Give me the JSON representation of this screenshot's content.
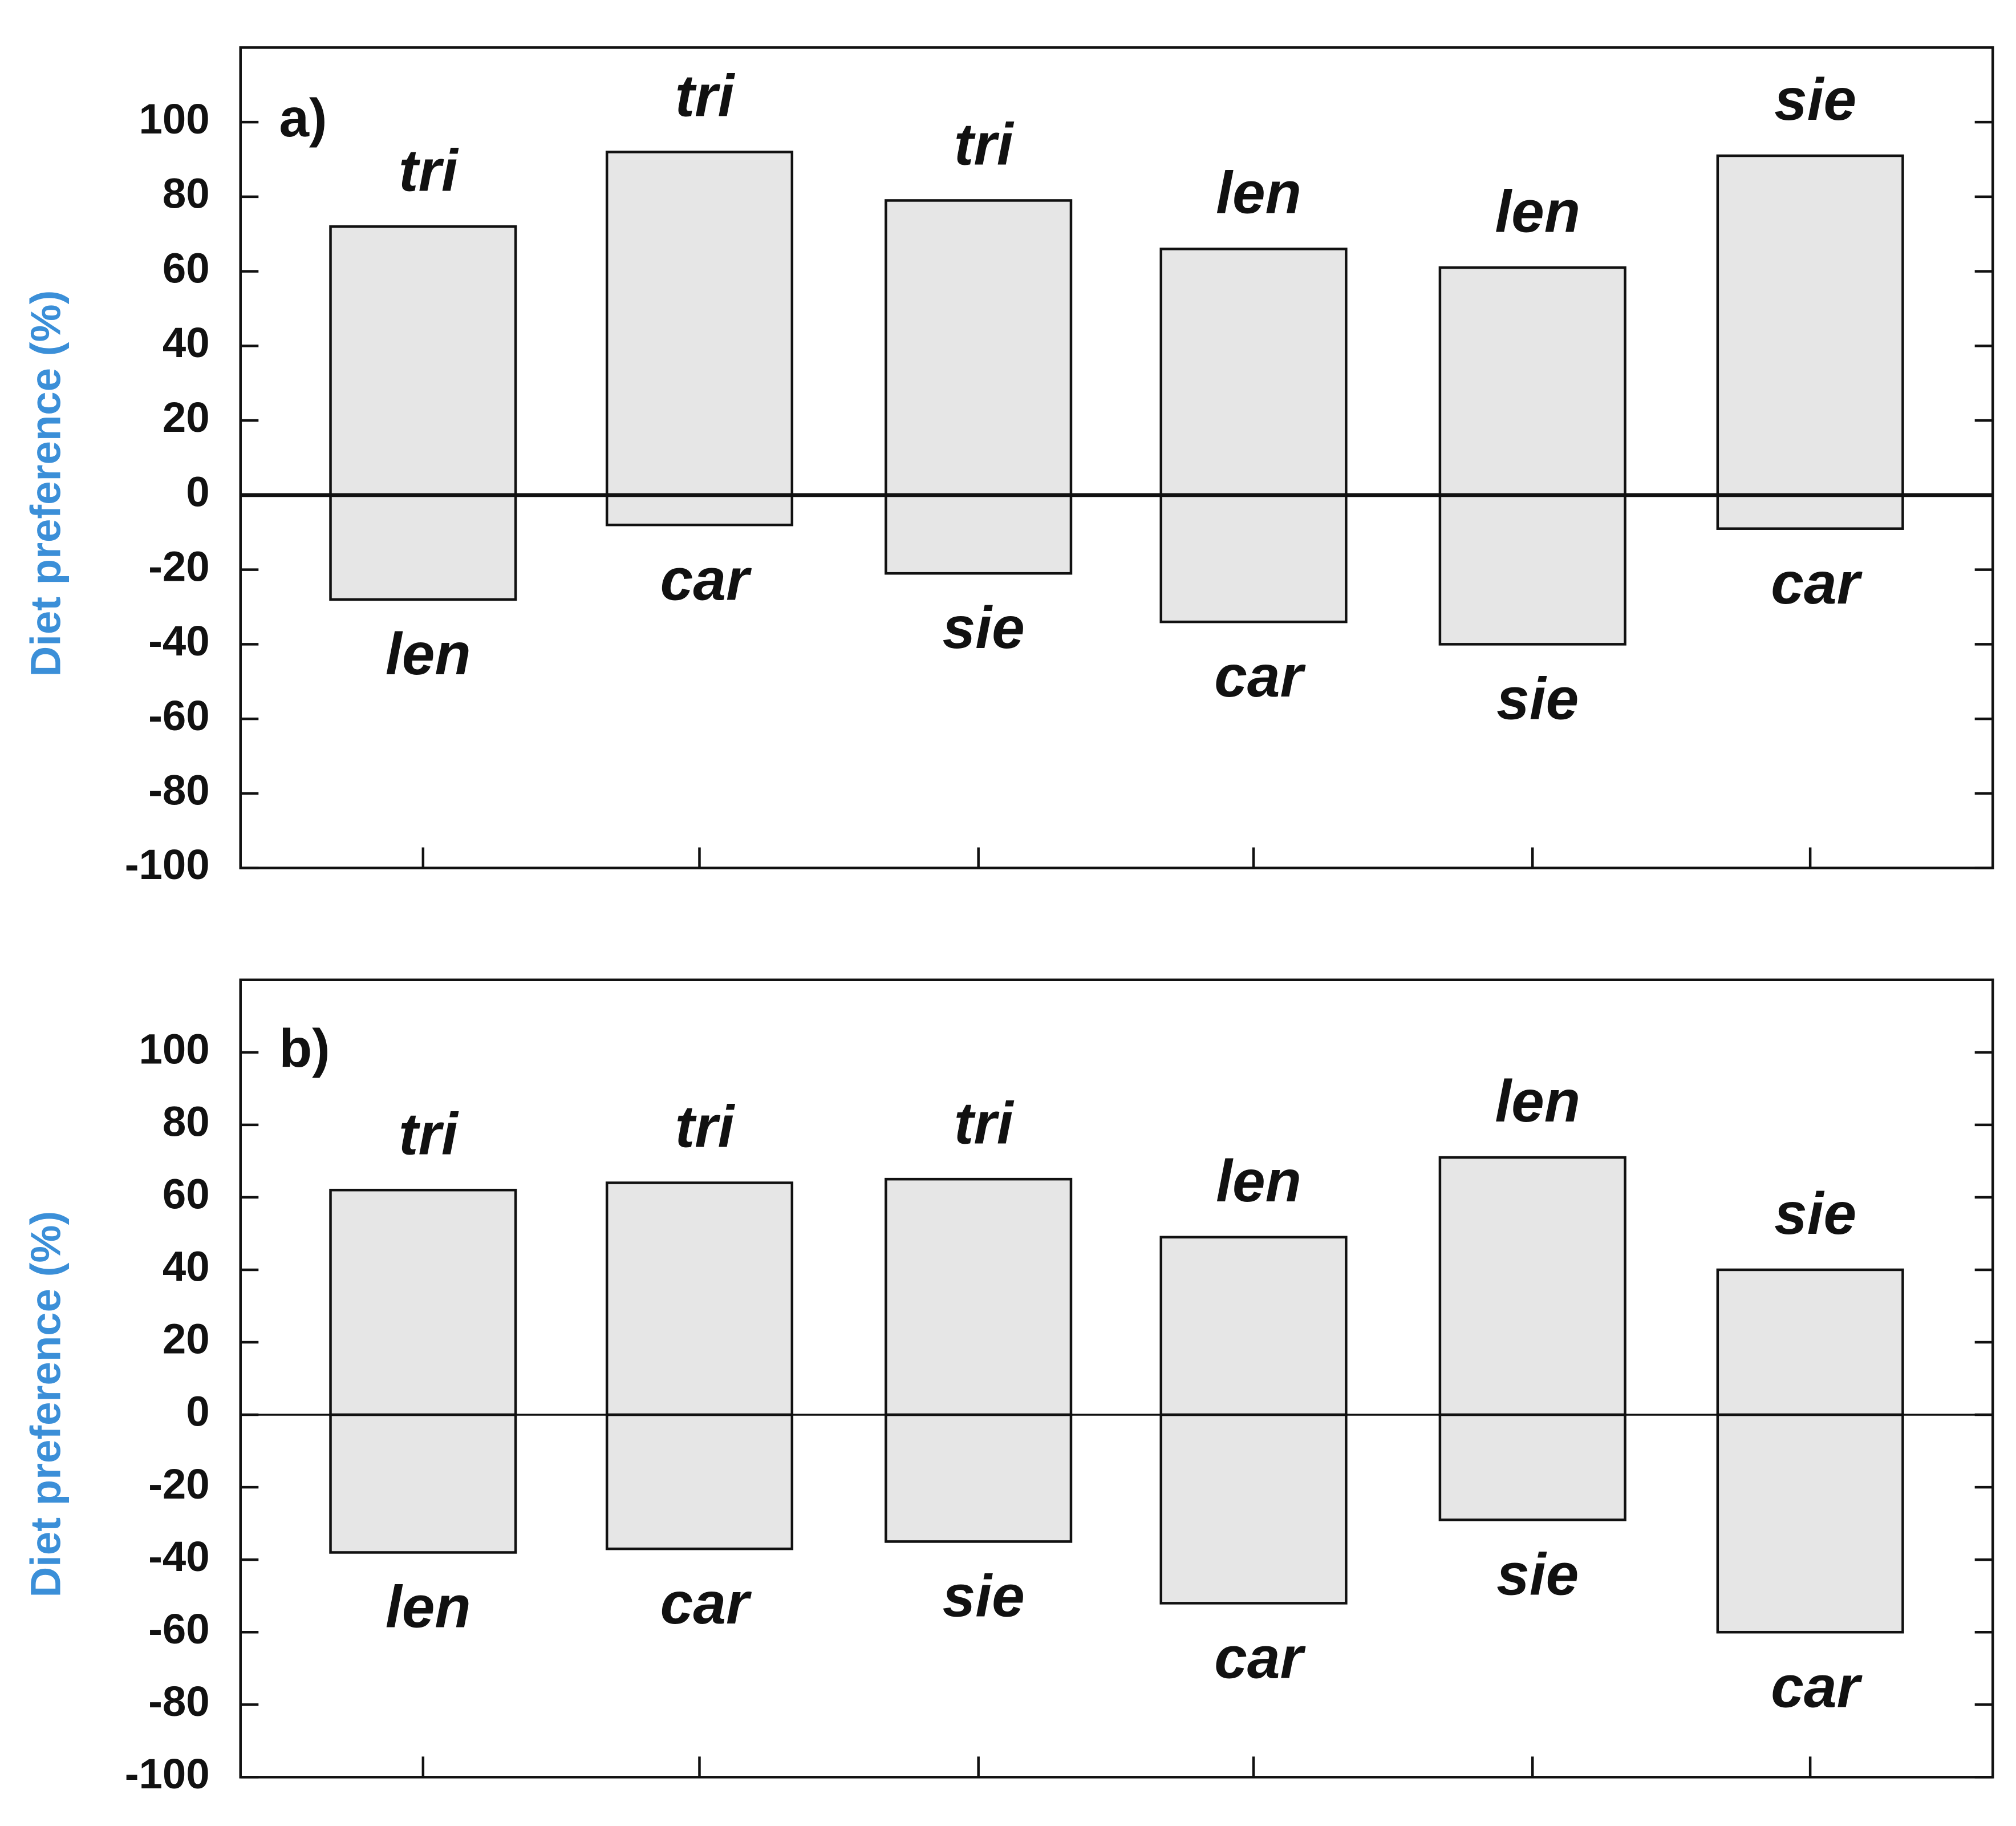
{
  "chart_data": [
    {
      "type": "bar",
      "panel_label": "a)",
      "y_label": "Diet preference (%)",
      "categories": [
        null,
        null,
        null,
        null,
        null,
        null
      ],
      "series": [
        {
          "color": "#e6e6e6",
          "values": [
            72,
            92,
            79,
            66,
            61,
            91
          ],
          "labels": [
            "tri",
            "tri",
            "tri",
            "len",
            "len",
            "sie"
          ]
        },
        {
          "color": "#e6e6e6",
          "values": [
            -28,
            -8,
            -21,
            -34,
            -40,
            -9
          ],
          "labels": [
            "len",
            "car",
            "sie",
            "car",
            "sie",
            "car"
          ]
        }
      ],
      "ylim": [
        -100,
        120
      ],
      "yticks": [
        100,
        80,
        60,
        40,
        20,
        0,
        -20,
        -40,
        -60,
        -80,
        -100
      ]
    },
    {
      "type": "bar",
      "panel_label": "b)",
      "y_label": "Diet preference (%)",
      "categories": [
        null,
        null,
        null,
        null,
        null,
        null
      ],
      "series": [
        {
          "color": "#e6e6e6",
          "values": [
            62,
            64,
            65,
            49,
            71,
            40
          ],
          "labels": [
            "tri",
            "tri",
            "tri",
            "len",
            "len",
            "sie"
          ]
        },
        {
          "color": "#e6e6e6",
          "values": [
            -38,
            -37,
            -35,
            -52,
            -29,
            -60
          ],
          "labels": [
            "len",
            "car",
            "sie",
            "car",
            "sie",
            "car"
          ]
        }
      ],
      "ylim": [
        -100,
        120
      ],
      "yticks": [
        100,
        80,
        60,
        40,
        20,
        0,
        -20,
        -40,
        -60,
        -80,
        -100
      ]
    }
  ]
}
